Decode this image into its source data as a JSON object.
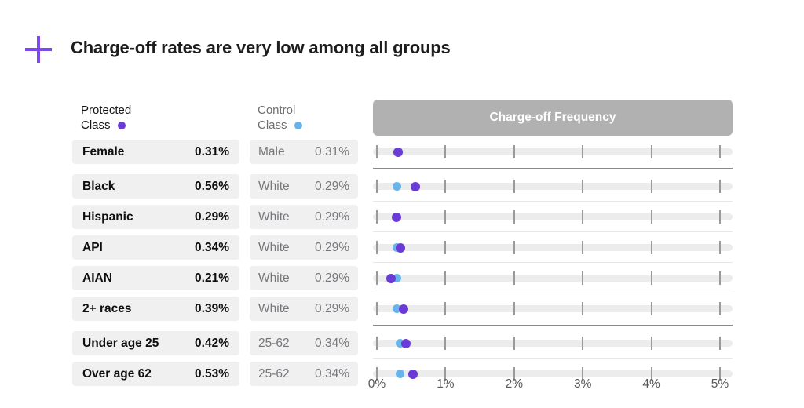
{
  "title": "Charge-off rates are very low among all groups",
  "legend": {
    "protected": {
      "line1": "Protected",
      "line2": "Class"
    },
    "control": {
      "line1": "Control",
      "line2": "Class"
    }
  },
  "chart_header": "Charge-off Frequency",
  "axis": {
    "ticks": [
      "0%",
      "1%",
      "2%",
      "3%",
      "4%",
      "5%"
    ],
    "min": 0,
    "max": 5,
    "unit": "%"
  },
  "colors": {
    "protected_dot": "#6a3bd6",
    "control_dot": "#67b4ea",
    "plus_icon": "#7b4be8",
    "chart_header_bg": "#b1b1b1",
    "cell_bg": "#f0f0f0",
    "track": "#ececec",
    "tick": "#9a9a9a",
    "group_divider": "#8a8a8a",
    "row_divider": "#e7e7e7"
  },
  "rows": [
    {
      "protected_label": "Female",
      "protected_value": "0.31%",
      "control_label": "Male",
      "control_value": "0.31%",
      "protected_pct": 0.31,
      "control_pct": 0.31,
      "new_group": false
    },
    {
      "protected_label": "Black",
      "protected_value": "0.56%",
      "control_label": "White",
      "control_value": "0.29%",
      "protected_pct": 0.56,
      "control_pct": 0.29,
      "new_group": true
    },
    {
      "protected_label": "Hispanic",
      "protected_value": "0.29%",
      "control_label": "White",
      "control_value": "0.29%",
      "protected_pct": 0.29,
      "control_pct": 0.29,
      "new_group": false
    },
    {
      "protected_label": "API",
      "protected_value": "0.34%",
      "control_label": "White",
      "control_value": "0.29%",
      "protected_pct": 0.34,
      "control_pct": 0.29,
      "new_group": false
    },
    {
      "protected_label": "AIAN",
      "protected_value": "0.21%",
      "control_label": "White",
      "control_value": "0.29%",
      "protected_pct": 0.21,
      "control_pct": 0.29,
      "new_group": false
    },
    {
      "protected_label": "2+ races",
      "protected_value": "0.39%",
      "control_label": "White",
      "control_value": "0.29%",
      "protected_pct": 0.39,
      "control_pct": 0.29,
      "new_group": false
    },
    {
      "protected_label": "Under age 25",
      "protected_value": "0.42%",
      "control_label": "25-62",
      "control_value": "0.34%",
      "protected_pct": 0.42,
      "control_pct": 0.34,
      "new_group": true
    },
    {
      "protected_label": "Over age 62",
      "protected_value": "0.53%",
      "control_label": "25-62",
      "control_value": "0.34%",
      "protected_pct": 0.53,
      "control_pct": 0.34,
      "new_group": false
    }
  ],
  "chart_data": {
    "type": "scatter",
    "title": "Charge-off Frequency",
    "categories": [
      "Female",
      "Black",
      "Hispanic",
      "API",
      "AIAN",
      "2+ races",
      "Under age 25",
      "Over age 62"
    ],
    "series": [
      {
        "name": "Protected Class",
        "color": "#6a3bd6",
        "values": [
          0.31,
          0.56,
          0.29,
          0.34,
          0.21,
          0.39,
          0.42,
          0.53
        ]
      },
      {
        "name": "Control Class",
        "color": "#67b4ea",
        "labels": [
          "Male",
          "White",
          "White",
          "White",
          "White",
          "White",
          "25-62",
          "25-62"
        ],
        "values": [
          0.31,
          0.29,
          0.29,
          0.29,
          0.29,
          0.29,
          0.34,
          0.34
        ]
      }
    ],
    "xlabel": "Charge-off frequency (%)",
    "xtick_labels": [
      "0%",
      "1%",
      "2%",
      "3%",
      "4%",
      "5%"
    ],
    "xlim": [
      0,
      5
    ],
    "grid": "vertical-ticks-only",
    "legend_position": "column-headers"
  }
}
